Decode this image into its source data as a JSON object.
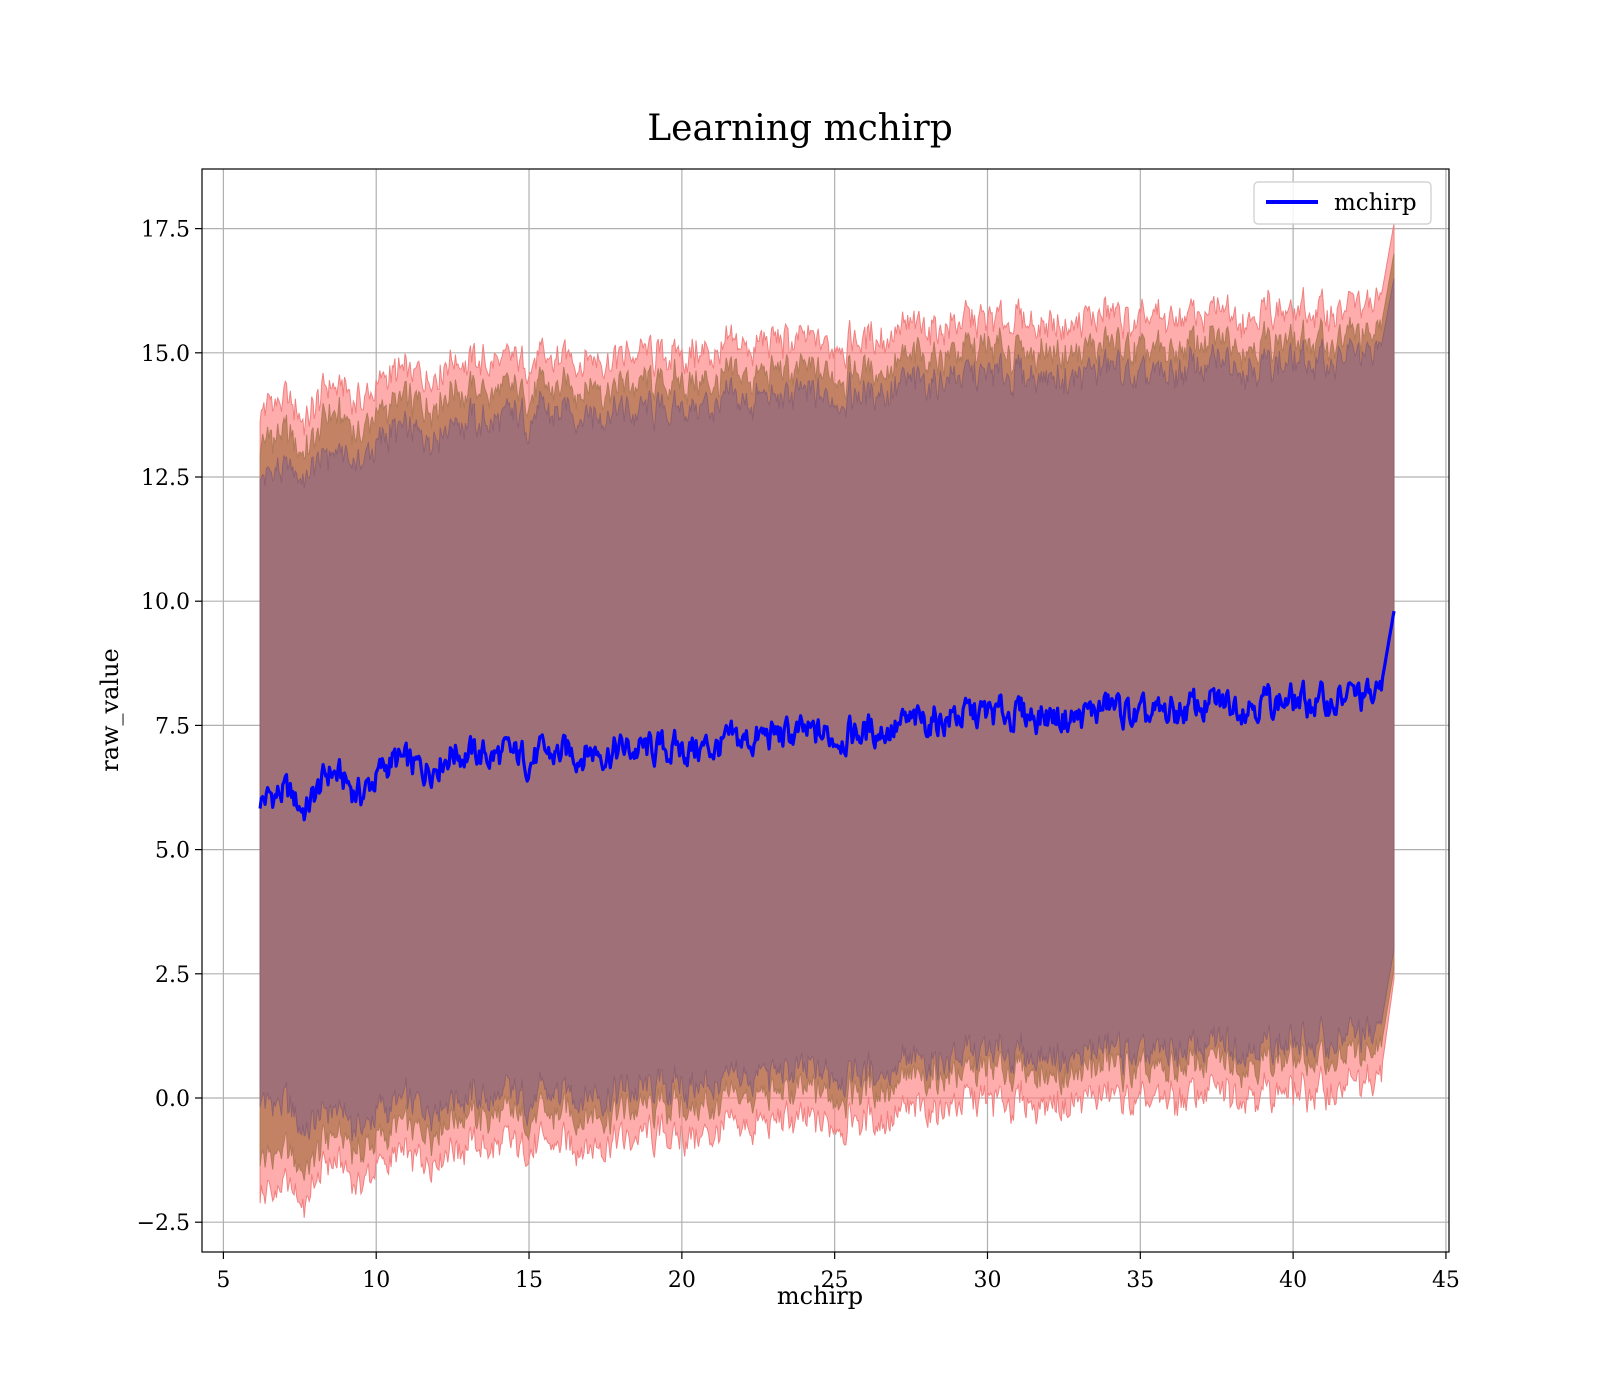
{
  "chart_data": {
    "type": "line",
    "title": "Learning mchirp",
    "xlabel": "mchirp",
    "ylabel": "raw_value",
    "xlim": [
      4.3,
      45.1
    ],
    "ylim": [
      -3.1,
      18.7
    ],
    "x_ticks": [
      5,
      10,
      15,
      20,
      25,
      30,
      35,
      40,
      45
    ],
    "x_tick_labels": [
      "5",
      "10",
      "15",
      "20",
      "25",
      "30",
      "35",
      "40",
      "45"
    ],
    "y_ticks": [
      -2.5,
      0.0,
      2.5,
      5.0,
      7.5,
      10.0,
      12.5,
      15.0,
      17.5
    ],
    "y_tick_labels": [
      "−2.5",
      "0.0",
      "2.5",
      "5.0",
      "7.5",
      "10.0",
      "12.5",
      "15.0",
      "17.5"
    ],
    "grid": true,
    "legend_position": "top-right",
    "colors": {
      "line": "#0000ff",
      "band_outer": "#ff7f7f",
      "band_middle": "#c08060",
      "band_inner": "#a07078"
    },
    "series": [
      {
        "name": "mchirp",
        "x": [
          6.2,
          7,
          7.7,
          8.5,
          9.5,
          10.5,
          11.5,
          12.5,
          13.5,
          15,
          17,
          19,
          21,
          23,
          25,
          27,
          29,
          31,
          33,
          34,
          35,
          37,
          39,
          41,
          42,
          42.8,
          43.3
        ],
        "y": [
          6.0,
          6.15,
          5.8,
          6.6,
          6.1,
          6.8,
          6.6,
          7.0,
          6.9,
          6.85,
          7.0,
          7.0,
          7.05,
          7.3,
          7.3,
          7.45,
          7.7,
          7.75,
          7.65,
          7.9,
          7.6,
          7.9,
          8.0,
          7.95,
          8.1,
          8.0,
          9.8
        ],
        "lower_1": [
          0.0,
          -0.1,
          -0.7,
          -0.2,
          -0.6,
          -0.1,
          -0.2,
          0.1,
          0.0,
          0.0,
          0.1,
          0.2,
          0.25,
          0.5,
          0.5,
          0.6,
          0.85,
          0.9,
          0.8,
          1.05,
          0.75,
          1.05,
          1.1,
          1.1,
          1.25,
          1.2,
          3.0
        ],
        "upper_1": [
          12.5,
          12.65,
          12.45,
          13.0,
          12.8,
          13.4,
          13.3,
          13.7,
          13.6,
          13.7,
          13.8,
          13.8,
          13.9,
          14.1,
          14.1,
          14.3,
          14.5,
          14.55,
          14.5,
          14.75,
          14.4,
          14.75,
          14.8,
          14.8,
          14.95,
          14.85,
          16.5
        ],
        "lower_2": [
          -1.25,
          -1.1,
          -1.5,
          -0.7,
          -1.1,
          -0.6,
          -0.7,
          -0.3,
          -0.4,
          -0.4,
          -0.3,
          -0.2,
          -0.15,
          0.1,
          0.1,
          0.25,
          0.5,
          0.55,
          0.45,
          0.7,
          0.4,
          0.7,
          0.75,
          0.7,
          0.85,
          0.75,
          2.6
        ],
        "upper_2": [
          13.2,
          13.35,
          13.0,
          13.8,
          13.4,
          14.0,
          13.9,
          14.3,
          14.2,
          14.2,
          14.35,
          14.35,
          14.4,
          14.6,
          14.6,
          14.75,
          15.0,
          15.05,
          14.95,
          15.2,
          14.9,
          15.2,
          15.25,
          15.2,
          15.35,
          15.25,
          17.0
        ],
        "lower_3": [
          -1.9,
          -1.85,
          -2.1,
          -1.25,
          -1.7,
          -1.2,
          -1.3,
          -0.9,
          -1.0,
          -1.0,
          -0.9,
          -0.8,
          -0.75,
          -0.5,
          -0.5,
          -0.35,
          -0.1,
          -0.05,
          -0.15,
          0.1,
          -0.2,
          0.1,
          0.15,
          0.1,
          0.25,
          0.15,
          2.4
        ],
        "upper_3": [
          13.9,
          14.0,
          13.6,
          14.4,
          14.0,
          14.6,
          14.5,
          14.9,
          14.8,
          14.8,
          14.9,
          14.95,
          15.0,
          15.2,
          15.2,
          15.4,
          15.6,
          15.65,
          15.55,
          15.8,
          15.5,
          15.8,
          15.85,
          15.8,
          15.95,
          15.85,
          17.6
        ]
      }
    ]
  }
}
